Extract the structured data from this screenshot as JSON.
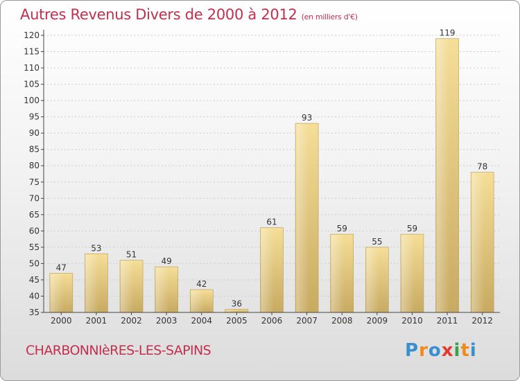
{
  "title": "Autres Revenus Divers de 2000 à 2012",
  "title_unit": "(en milliers d'€)",
  "commune": "CHARBONNIèRES-LES-SAPINS",
  "logo": {
    "letters": [
      "P",
      "r",
      "o",
      "x",
      "i",
      "t",
      "i"
    ],
    "colors": [
      "#3a8fd0",
      "#f08a1c",
      "#3a8fd0",
      "#e23b2e",
      "#3aa24a",
      "#f08a1c",
      "#3a8fd0"
    ]
  },
  "colors": {
    "bar_top": "#f5de98",
    "bar_bottom": "#c8aa62",
    "bar_edge": "#b89a52",
    "axis": "#444444",
    "grid": "#cccccc",
    "title": "#c0304f"
  },
  "chart_data": {
    "type": "bar",
    "title": "Autres Revenus Divers de 2000 à 2012",
    "ylabel": "",
    "xlabel": "",
    "categories": [
      "2000",
      "2001",
      "2002",
      "2003",
      "2004",
      "2005",
      "2006",
      "2007",
      "2008",
      "2009",
      "2010",
      "2011",
      "2012"
    ],
    "values": [
      47,
      53,
      51,
      49,
      42,
      36,
      61,
      93,
      59,
      55,
      59,
      119,
      78
    ],
    "ylim": [
      35,
      120
    ],
    "yticks": [
      35,
      40,
      45,
      50,
      55,
      60,
      65,
      70,
      75,
      80,
      85,
      90,
      95,
      100,
      105,
      110,
      115,
      120
    ],
    "grid": "horizontal dashed"
  }
}
